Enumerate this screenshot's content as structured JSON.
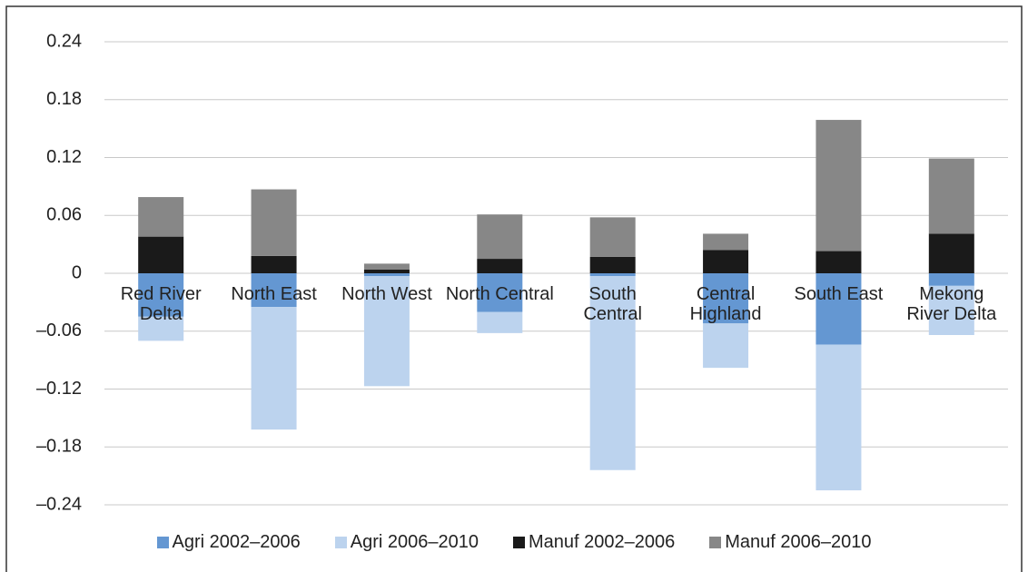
{
  "chart_data": {
    "type": "bar",
    "stacked": true,
    "categories": [
      "Red River Delta",
      "North East",
      "North West",
      "North Central",
      "South Central",
      "Central Highland",
      "South East",
      "Mekong River Delta"
    ],
    "series": [
      {
        "name": "Agri 2002–2006",
        "color": "#6497d2",
        "values": [
          -0.045,
          -0.035,
          -0.003,
          -0.04,
          -0.003,
          -0.052,
          -0.074,
          -0.013
        ]
      },
      {
        "name": "Agri 2006–2010",
        "color": "#bcd3ee",
        "values": [
          -0.025,
          -0.127,
          -0.114,
          -0.022,
          -0.201,
          -0.046,
          -0.151,
          -0.051
        ]
      },
      {
        "name": "Manuf 2002–2006",
        "color": "#1a1a1a",
        "values": [
          0.038,
          0.018,
          0.004,
          0.015,
          0.017,
          0.024,
          0.023,
          0.041
        ]
      },
      {
        "name": "Manuf 2006–2010",
        "color": "#878787",
        "values": [
          0.041,
          0.069,
          0.006,
          0.046,
          0.041,
          0.017,
          0.136,
          0.078
        ]
      }
    ],
    "ylim": [
      -0.24,
      0.24
    ],
    "yticks": [
      {
        "value": -0.24,
        "label": "–0.24"
      },
      {
        "value": -0.18,
        "label": "–0.18"
      },
      {
        "value": -0.12,
        "label": "–0.12"
      },
      {
        "value": -0.06,
        "label": "–0.06"
      },
      0,
      0.06,
      0.12,
      0.18,
      0.24
    ],
    "grid": true
  }
}
